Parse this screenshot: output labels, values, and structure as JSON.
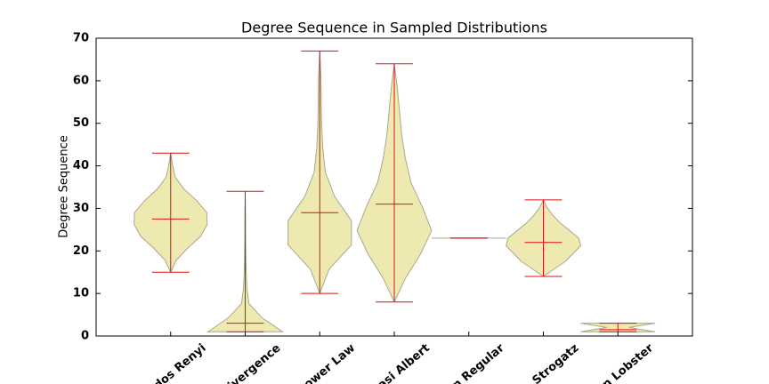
{
  "chart_data": {
    "type": "violin",
    "title": "Degree Sequence in Sampled Distributions",
    "ylabel": "Degree Sequence",
    "categories": [
      "dos Renyi",
      "ivergence",
      "ower Law",
      "asi Albert",
      "n Regular",
      "Strogatz",
      "n Lobster"
    ],
    "violins": [
      {
        "min": 15,
        "max": 43,
        "median": 27.5,
        "density": [
          0,
          0.15,
          0.45,
          0.8,
          0.98,
          0.97,
          0.7,
          0.35,
          0.12,
          0.05,
          0
        ]
      },
      {
        "min": 1,
        "max": 34,
        "median": 3,
        "density": [
          1.0,
          0.45,
          0.1,
          0.05,
          0.03,
          0.02,
          0.015,
          0.01,
          0.01,
          0.005,
          0
        ]
      },
      {
        "min": 10,
        "max": 67,
        "median": 29,
        "density": [
          0,
          0.25,
          0.85,
          0.85,
          0.4,
          0.15,
          0.08,
          0.05,
          0.04,
          0.03,
          0
        ]
      },
      {
        "min": 8,
        "max": 64,
        "median": 31,
        "density": [
          0,
          0.3,
          0.7,
          1.0,
          0.75,
          0.45,
          0.3,
          0.2,
          0.14,
          0.08,
          0
        ]
      },
      {
        "min": 23,
        "max": 23,
        "median": 23,
        "density": [
          1
        ]
      },
      {
        "min": 14,
        "max": 32,
        "median": 22,
        "density": [
          0,
          0.3,
          0.6,
          0.8,
          1.0,
          0.95,
          0.7,
          0.45,
          0.25,
          0.1,
          0
        ]
      },
      {
        "min": 1,
        "max": 3,
        "median": 1.5,
        "density": [
          1,
          0.3,
          1
        ]
      }
    ],
    "fill": "#eee9b0",
    "edge": "#a8a890",
    "line_color": "#dd1111",
    "ylim": [
      0,
      70
    ],
    "yticks": [
      0,
      10,
      20,
      30,
      40,
      50,
      60,
      70
    ]
  }
}
